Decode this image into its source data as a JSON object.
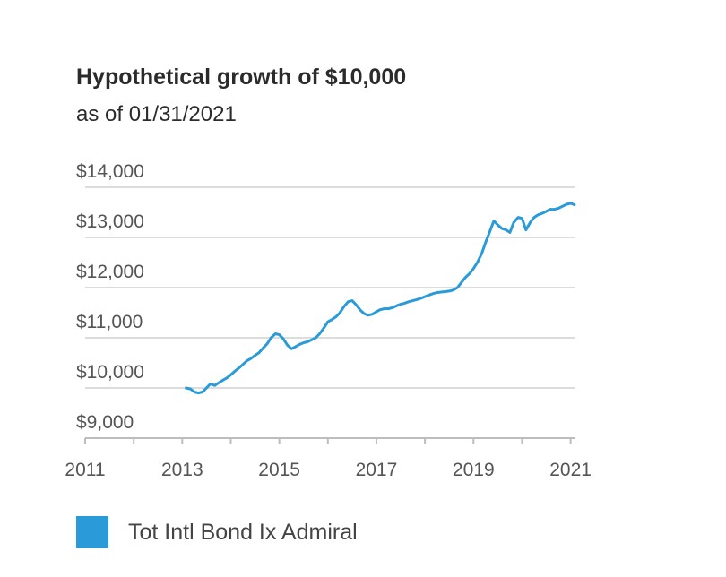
{
  "chart_data": {
    "type": "line",
    "title": "Hypothetical growth of $10,000",
    "subtitle": "as of 01/31/2021",
    "xlabel": "",
    "ylabel": "",
    "xlim": [
      2011,
      2021.1
    ],
    "ylim": [
      9000,
      14000
    ],
    "x_ticks": [
      2011,
      2012,
      2013,
      2014,
      2015,
      2016,
      2017,
      2018,
      2019,
      2020,
      2021
    ],
    "x_tick_labels": [
      "2011",
      "2013",
      "2015",
      "2017",
      "2019",
      "2021"
    ],
    "x_tick_label_values": [
      2011,
      2013,
      2015,
      2017,
      2019,
      2021
    ],
    "y_ticks": [
      9000,
      10000,
      11000,
      12000,
      13000,
      14000
    ],
    "y_tick_labels": [
      "$9,000",
      "$10,000",
      "$11,000",
      "$12,000",
      "$13,000",
      "$14,000"
    ],
    "grid": true,
    "legend": "bottom-left",
    "series": [
      {
        "name": "Tot Intl Bond Ix Admiral",
        "color": "#2b9ad8",
        "x": [
          2013.08,
          2013.17,
          2013.25,
          2013.33,
          2013.42,
          2013.5,
          2013.58,
          2013.67,
          2013.75,
          2013.83,
          2013.92,
          2014.0,
          2014.08,
          2014.17,
          2014.25,
          2014.33,
          2014.42,
          2014.5,
          2014.58,
          2014.67,
          2014.75,
          2014.83,
          2014.92,
          2015.0,
          2015.08,
          2015.17,
          2015.25,
          2015.33,
          2015.42,
          2015.5,
          2015.58,
          2015.67,
          2015.75,
          2015.83,
          2015.92,
          2016.0,
          2016.08,
          2016.17,
          2016.25,
          2016.33,
          2016.42,
          2016.5,
          2016.58,
          2016.67,
          2016.75,
          2016.83,
          2016.92,
          2017.0,
          2017.08,
          2017.17,
          2017.25,
          2017.33,
          2017.42,
          2017.5,
          2017.58,
          2017.67,
          2017.75,
          2017.83,
          2017.92,
          2018.0,
          2018.08,
          2018.17,
          2018.25,
          2018.33,
          2018.42,
          2018.5,
          2018.58,
          2018.67,
          2018.75,
          2018.83,
          2018.92,
          2019.0,
          2019.08,
          2019.17,
          2019.25,
          2019.33,
          2019.42,
          2019.5,
          2019.58,
          2019.67,
          2019.75,
          2019.83,
          2019.92,
          2020.0,
          2020.08,
          2020.17,
          2020.25,
          2020.33,
          2020.42,
          2020.5,
          2020.58,
          2020.67,
          2020.75,
          2020.83,
          2020.92,
          2021.0,
          2021.08
        ],
        "values": [
          10000,
          9980,
          9920,
          9900,
          9920,
          10000,
          10080,
          10050,
          10100,
          10150,
          10200,
          10260,
          10330,
          10400,
          10470,
          10540,
          10590,
          10650,
          10700,
          10800,
          10880,
          11000,
          11080,
          11060,
          10980,
          10850,
          10780,
          10820,
          10870,
          10900,
          10920,
          10960,
          11000,
          11080,
          11200,
          11320,
          11360,
          11420,
          11500,
          11620,
          11720,
          11740,
          11660,
          11550,
          11480,
          11450,
          11470,
          11520,
          11560,
          11580,
          11580,
          11600,
          11640,
          11670,
          11690,
          11720,
          11740,
          11760,
          11790,
          11820,
          11850,
          11880,
          11900,
          11910,
          11920,
          11930,
          11950,
          12000,
          12100,
          12200,
          12280,
          12380,
          12500,
          12680,
          12900,
          13100,
          13330,
          13250,
          13180,
          13150,
          13100,
          13300,
          13400,
          13380,
          13150,
          13300,
          13400,
          13450,
          13480,
          13520,
          13560,
          13560,
          13580,
          13620,
          13660,
          13680,
          13650
        ]
      }
    ]
  }
}
